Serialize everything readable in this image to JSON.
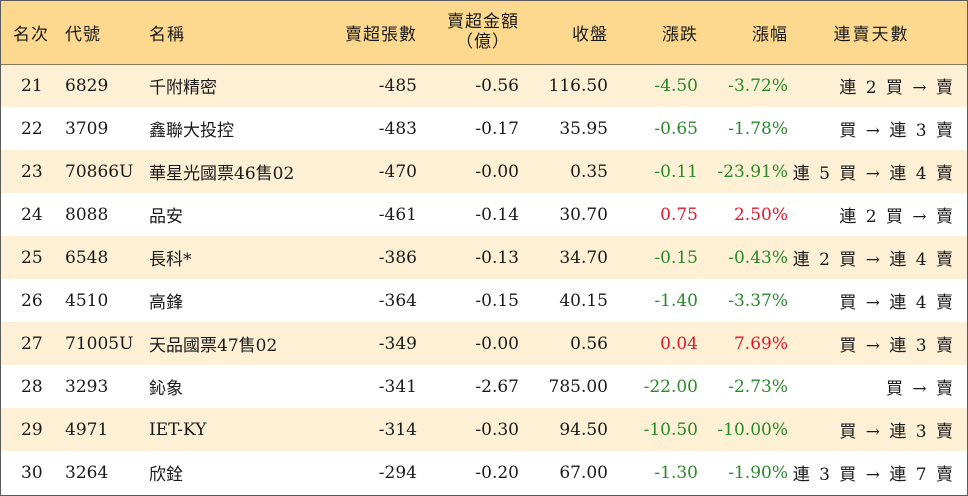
{
  "headers": {
    "rank": "名次",
    "code": "代號",
    "name": "名稱",
    "net_sell_lots": "賣超張數",
    "net_sell_amount_line1": "賣超金額",
    "net_sell_amount_line2": "（億）",
    "close": "收盤",
    "change": "漲跌",
    "change_pct": "漲幅",
    "streak": "連賣天數"
  },
  "colors": {
    "header_bg": "#fcd98f",
    "row_odd_bg": "#fdf0d4",
    "up": "#e0182b",
    "down": "#2a8a2a"
  },
  "rows": [
    {
      "rank": "21",
      "code": "6829",
      "name": "千附精密",
      "lots": "-485",
      "amount": "-0.56",
      "close": "116.50",
      "change": "-4.50",
      "pct": "-3.72%",
      "streak": "連 2 買 → 賣",
      "dir": "down"
    },
    {
      "rank": "22",
      "code": "3709",
      "name": "鑫聯大投控",
      "lots": "-483",
      "amount": "-0.17",
      "close": "35.95",
      "change": "-0.65",
      "pct": "-1.78%",
      "streak": "買 → 連 3 賣",
      "dir": "down"
    },
    {
      "rank": "23",
      "code": "70866U",
      "name": "華星光國票46售02",
      "lots": "-470",
      "amount": "-0.00",
      "close": "0.35",
      "change": "-0.11",
      "pct": "-23.91%",
      "streak": "連 5 買 → 連 4 賣",
      "dir": "down"
    },
    {
      "rank": "24",
      "code": "8088",
      "name": "品安",
      "lots": "-461",
      "amount": "-0.14",
      "close": "30.70",
      "change": "0.75",
      "pct": "2.50%",
      "streak": "連 2 買 → 賣",
      "dir": "up"
    },
    {
      "rank": "25",
      "code": "6548",
      "name": "長科*",
      "lots": "-386",
      "amount": "-0.13",
      "close": "34.70",
      "change": "-0.15",
      "pct": "-0.43%",
      "streak": "連 2 買 → 連 4 賣",
      "dir": "down"
    },
    {
      "rank": "26",
      "code": "4510",
      "name": "高鋒",
      "lots": "-364",
      "amount": "-0.15",
      "close": "40.15",
      "change": "-1.40",
      "pct": "-3.37%",
      "streak": "買 → 連 4 賣",
      "dir": "down"
    },
    {
      "rank": "27",
      "code": "71005U",
      "name": "天品國票47售02",
      "lots": "-349",
      "amount": "-0.00",
      "close": "0.56",
      "change": "0.04",
      "pct": "7.69%",
      "streak": "買 → 連 3 賣",
      "dir": "up"
    },
    {
      "rank": "28",
      "code": "3293",
      "name": "鈊象",
      "lots": "-341",
      "amount": "-2.67",
      "close": "785.00",
      "change": "-22.00",
      "pct": "-2.73%",
      "streak": "買 → 賣",
      "dir": "down"
    },
    {
      "rank": "29",
      "code": "4971",
      "name": "IET-KY",
      "lots": "-314",
      "amount": "-0.30",
      "close": "94.50",
      "change": "-10.50",
      "pct": "-10.00%",
      "streak": "買 → 連 3 賣",
      "dir": "down"
    },
    {
      "rank": "30",
      "code": "3264",
      "name": "欣銓",
      "lots": "-294",
      "amount": "-0.20",
      "close": "67.00",
      "change": "-1.30",
      "pct": "-1.90%",
      "streak": "連 3 買 → 連 7 賣",
      "dir": "down"
    }
  ]
}
